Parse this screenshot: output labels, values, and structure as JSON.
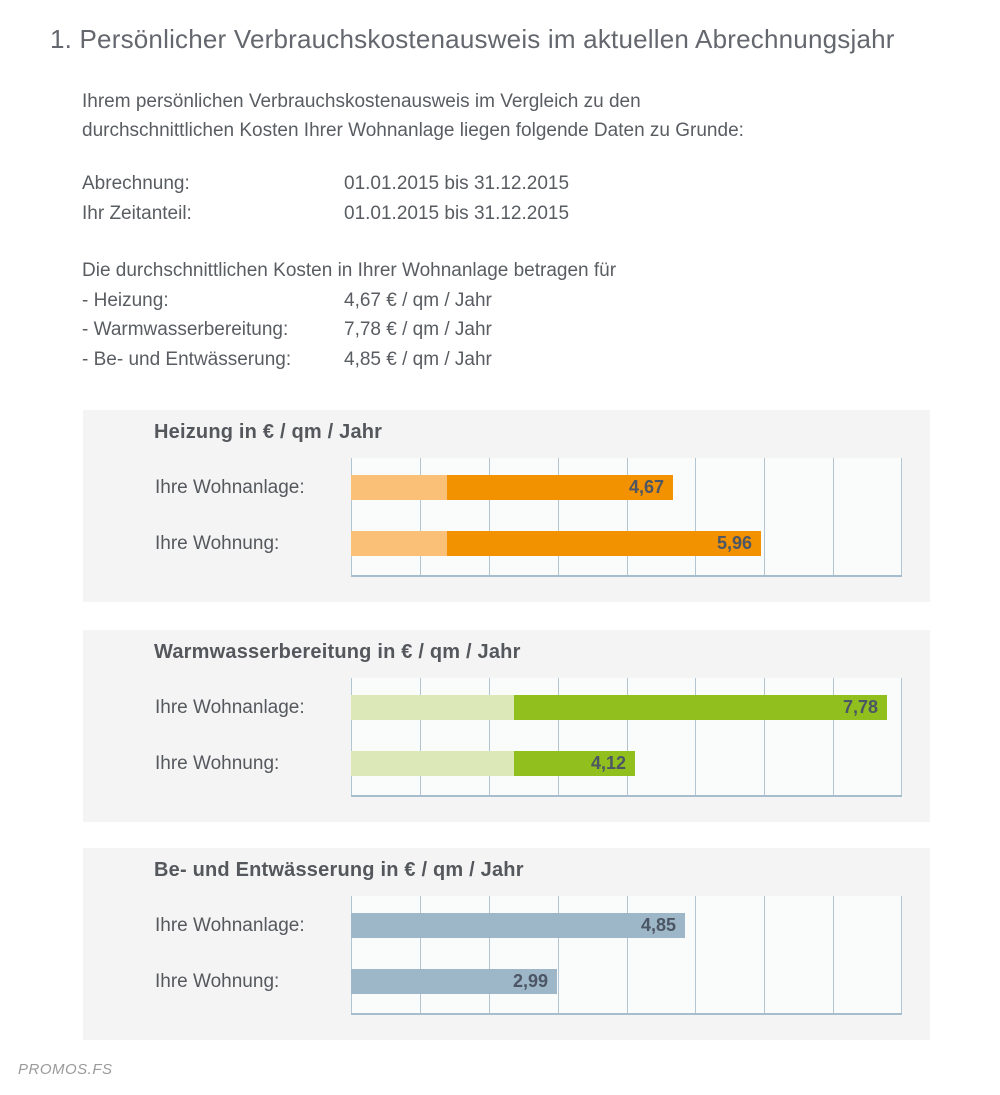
{
  "page": {
    "title": "1. Persönlicher Verbrauchskostenausweis im aktuellen Abrechnungsjahr"
  },
  "intro": {
    "lines": [
      "Ihrem persönlichen Verbrauchskostenausweis im Vergleich zu den",
      "durchschnittlichen Kosten Ihrer Wohnanlage liegen folgende Daten zu Grunde:"
    ]
  },
  "billing": {
    "rows": [
      {
        "label": "Abrechnung:",
        "value": "01.01.2015 bis 31.12.2015"
      },
      {
        "label": "Ihr Zeitanteil:",
        "value": "01.01.2015 bis 31.12.2015"
      }
    ]
  },
  "averages": {
    "heading": "Die durchschnittlichen Kosten in Ihrer Wohnanlage betragen für",
    "rows": [
      {
        "label": "- Heizung:",
        "value": "4,67 € / qm / Jahr"
      },
      {
        "label": "- Warmwasserbereitung:",
        "value": "7,78 € / qm / Jahr"
      },
      {
        "label": "- Be- und Entwässerung:",
        "value": "4,85 € / qm / Jahr"
      }
    ]
  },
  "chart_data": [
    {
      "type": "bar",
      "orientation": "horizontal",
      "title": "Heizung in € / qm / Jahr",
      "categories": [
        "Ihre Wohnanlage:",
        "Ihre Wohnung:"
      ],
      "values": [
        4.67,
        5.96
      ],
      "value_labels": [
        "4,67",
        "5,96"
      ],
      "base_segment_values": [
        1.4,
        1.4
      ],
      "colors": {
        "base": "#fac078",
        "main": "#f39200"
      },
      "xlim": [
        0,
        8
      ],
      "gridline_step": 1,
      "grid": true,
      "tick_labels_visible": false
    },
    {
      "type": "bar",
      "orientation": "horizontal",
      "title": "Warmwasserbereitung in € / qm / Jahr",
      "categories": [
        "Ihre Wohnanlage:",
        "Ihre Wohnung:"
      ],
      "values": [
        7.78,
        4.12
      ],
      "value_labels": [
        "7,78",
        "4,12"
      ],
      "base_segment_values": [
        2.36,
        2.36
      ],
      "colors": {
        "base": "#dce8b8",
        "main": "#91c01e"
      },
      "xlim": [
        0,
        8
      ],
      "gridline_step": 1,
      "grid": true,
      "tick_labels_visible": false
    },
    {
      "type": "bar",
      "orientation": "horizontal",
      "title": "Be- und Entwässerung in € / qm / Jahr",
      "categories": [
        "Ihre Wohnanlage:",
        "Ihre Wohnung:"
      ],
      "values": [
        4.85,
        2.99
      ],
      "value_labels": [
        "4,85",
        "2,99"
      ],
      "base_segment_values": [
        0,
        0
      ],
      "colors": {
        "base": "#9db6c8",
        "main": "#9db6c8"
      },
      "xlim": [
        0,
        8
      ],
      "gridline_step": 1,
      "grid": true,
      "tick_labels_visible": false
    }
  ],
  "footer": {
    "brand": "PROMOS.FS"
  }
}
